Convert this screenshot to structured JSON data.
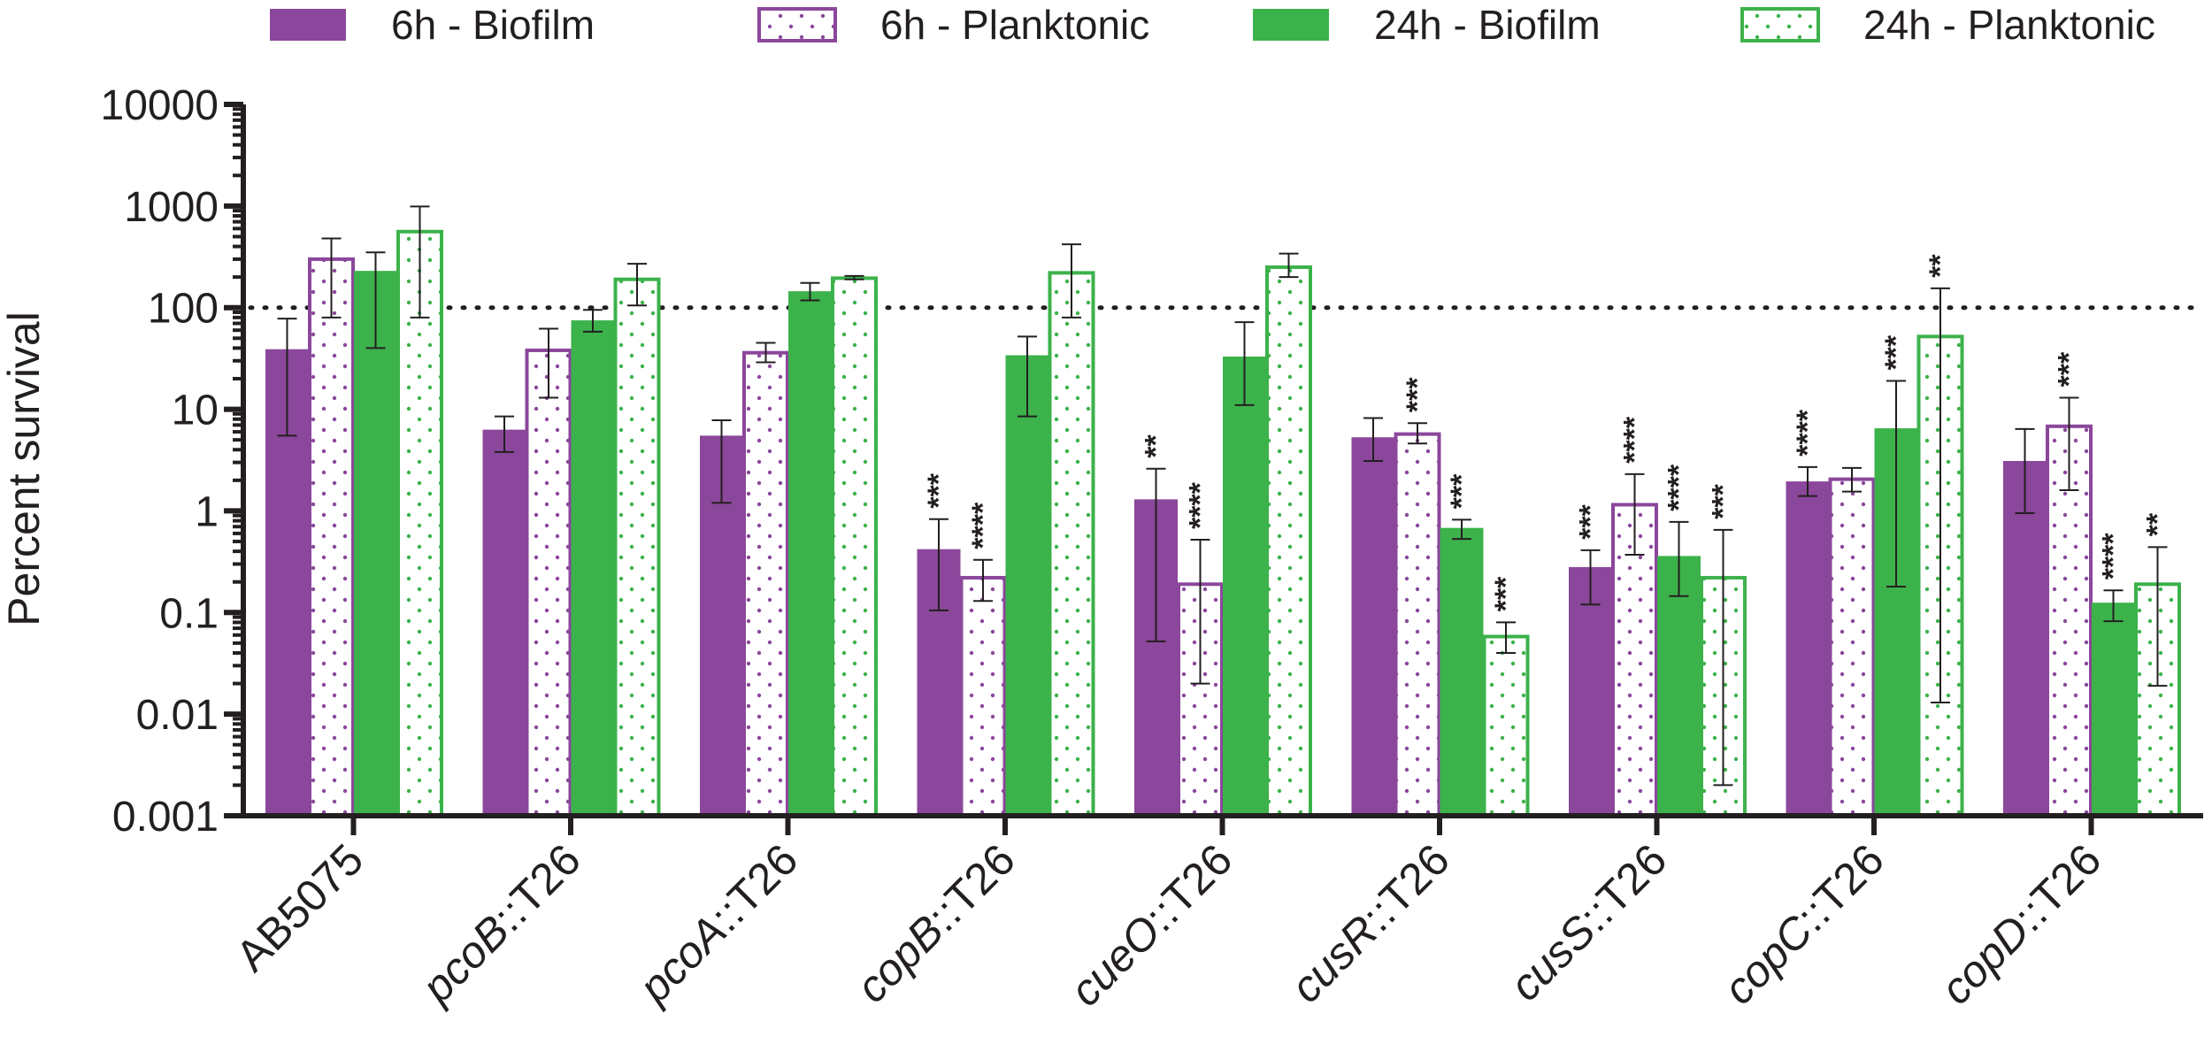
{
  "chart_data": {
    "type": "bar",
    "title": "",
    "xlabel": "",
    "ylabel": "Percent survival",
    "yscale": "log",
    "ylim": [
      0.001,
      10000
    ],
    "yticks": [
      "0.001",
      "0.01",
      "0.1",
      "1",
      "10",
      "100",
      "1000",
      "10000"
    ],
    "reference_line": 100,
    "categories": [
      {
        "pre": "",
        "ital": "",
        "post": "AB5075"
      },
      {
        "pre": "",
        "ital": "pcoB",
        "post": "::T26"
      },
      {
        "pre": "",
        "ital": "pcoA",
        "post": "::T26"
      },
      {
        "pre": "",
        "ital": "copB",
        "post": "::T26"
      },
      {
        "pre": "",
        "ital": "cueO",
        "post": "::T26"
      },
      {
        "pre": "",
        "ital": "cusR",
        "post": "::T26"
      },
      {
        "pre": "",
        "ital": "cusS",
        "post": "::T26"
      },
      {
        "pre": "",
        "ital": "copC",
        "post": "::T26"
      },
      {
        "pre": "",
        "ital": "copD",
        "post": "::T26"
      }
    ],
    "series": [
      {
        "name": "6h - Biofilm",
        "color": "#8b479b",
        "fill": "solid",
        "values": [
          39,
          6.3,
          5.5,
          0.42,
          1.3,
          5.3,
          0.28,
          1.95,
          3.1
        ],
        "err_low": [
          5.5,
          3.8,
          1.2,
          0.105,
          0.052,
          3.1,
          0.12,
          1.4,
          0.95
        ],
        "err_high": [
          78,
          8.5,
          7.8,
          0.83,
          2.6,
          8.2,
          0.41,
          2.7,
          6.4
        ],
        "significance": [
          "",
          "",
          "",
          "***",
          "**",
          "",
          "***",
          "****",
          ""
        ]
      },
      {
        "name": "6h - Planktonic",
        "color": "#8b479b",
        "fill": "dotted",
        "values": [
          300,
          38,
          36,
          0.22,
          0.19,
          5.7,
          1.15,
          2.05,
          6.8
        ],
        "err_low": [
          80,
          13,
          29,
          0.13,
          0.02,
          4.6,
          0.37,
          1.55,
          1.6
        ],
        "err_high": [
          480,
          62,
          45,
          0.33,
          0.52,
          7.3,
          2.3,
          2.65,
          13
        ],
        "significance": [
          "",
          "",
          "",
          "****",
          "****",
          "***",
          "****",
          "",
          "***"
        ]
      },
      {
        "name": "24h - Biofilm",
        "color": "#3cb24b",
        "fill": "solid",
        "values": [
          230,
          75,
          145,
          34,
          33,
          0.68,
          0.36,
          6.5,
          0.125
        ],
        "err_low": [
          40,
          58,
          118,
          8.5,
          11,
          0.53,
          0.145,
          0.18,
          0.082
        ],
        "err_high": [
          350,
          95,
          175,
          52,
          72,
          0.82,
          0.78,
          19,
          0.165
        ],
        "significance": [
          "",
          "",
          "",
          "",
          "",
          "***",
          "****",
          "***",
          "****"
        ]
      },
      {
        "name": "24h - Planktonic",
        "color": "#3cb24b",
        "fill": "dotted",
        "values": [
          560,
          190,
          195,
          220,
          250,
          0.058,
          0.22,
          52,
          0.19
        ],
        "err_low": [
          80,
          105,
          190,
          80,
          200,
          0.04,
          0.002,
          0.013,
          0.019
        ],
        "err_high": [
          990,
          270,
          205,
          420,
          340,
          0.08,
          0.65,
          155,
          0.44
        ],
        "significance": [
          "",
          "",
          "",
          "",
          "",
          "***",
          "***",
          "**",
          "**"
        ]
      }
    ]
  }
}
